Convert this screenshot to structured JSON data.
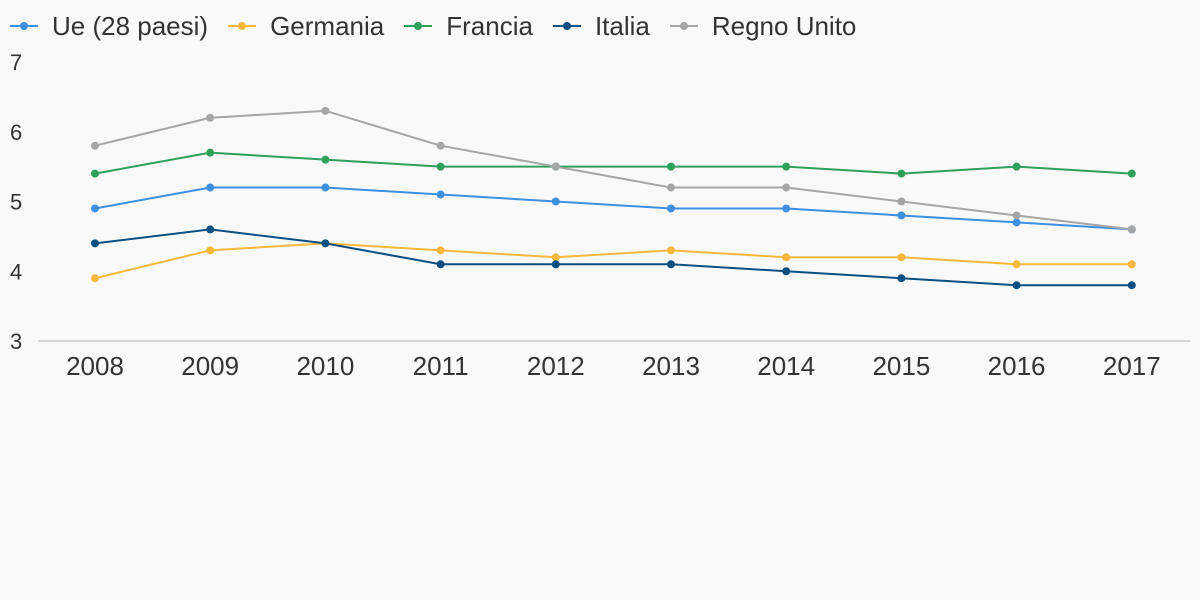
{
  "chart_data": {
    "type": "line",
    "title": "",
    "xlabel": "",
    "ylabel": "",
    "categories": [
      "2008",
      "2009",
      "2010",
      "2011",
      "2012",
      "2013",
      "2014",
      "2015",
      "2016",
      "2017"
    ],
    "y_ticks": [
      "3",
      "4",
      "5",
      "6",
      "7"
    ],
    "ylim": [
      3,
      7
    ],
    "grid": false,
    "legend_position": "top-left",
    "series": [
      {
        "name": "Ue (28 paesi)",
        "color": "#3d8fe0",
        "values": [
          4.9,
          5.2,
          5.2,
          5.1,
          5.0,
          4.9,
          4.9,
          4.8,
          4.7,
          4.6
        ]
      },
      {
        "name": "Germania",
        "color": "#f7b83d",
        "values": [
          3.9,
          4.3,
          4.4,
          4.3,
          4.2,
          4.3,
          4.2,
          4.2,
          4.1,
          4.1
        ]
      },
      {
        "name": "Francia",
        "color": "#2ea05a",
        "values": [
          5.4,
          5.7,
          5.6,
          5.5,
          5.5,
          5.5,
          5.5,
          5.4,
          5.5,
          5.4
        ]
      },
      {
        "name": "Italia",
        "color": "#0a4f82",
        "values": [
          4.4,
          4.6,
          4.4,
          4.1,
          4.1,
          4.1,
          4.0,
          3.9,
          3.8,
          3.8
        ]
      },
      {
        "name": "Regno Unito",
        "color": "#a6a6a6",
        "values": [
          5.8,
          6.2,
          6.3,
          5.8,
          5.5,
          5.2,
          5.2,
          5.0,
          4.8,
          4.6
        ]
      }
    ]
  }
}
